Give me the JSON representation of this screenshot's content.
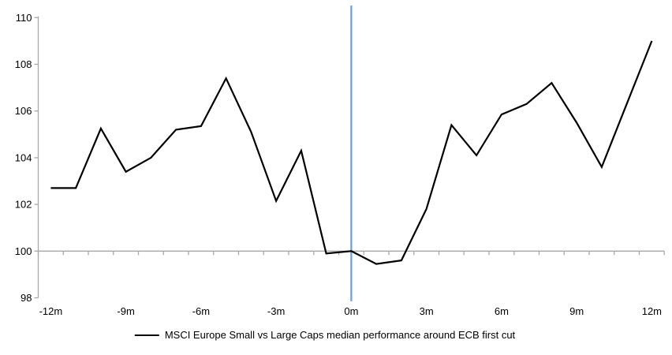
{
  "chart_data": {
    "type": "line",
    "x": [
      -12,
      -11,
      -10,
      -9,
      -8,
      -7,
      -6,
      -5,
      -4,
      -3,
      -2,
      -1,
      0,
      1,
      2,
      3,
      4,
      5,
      6,
      7,
      8,
      9,
      10,
      11,
      12
    ],
    "series": [
      {
        "name": "MSCI Europe Small vs Large Caps median performance around ECB first cut",
        "color": "#000000",
        "values": [
          102.7,
          102.7,
          105.25,
          103.4,
          104.0,
          105.2,
          105.35,
          107.4,
          105.1,
          102.15,
          104.3,
          99.9,
          100.0,
          99.45,
          99.6,
          101.8,
          105.4,
          104.1,
          105.85,
          106.3,
          107.2,
          105.5,
          103.6,
          106.3,
          109.0
        ]
      }
    ],
    "title": "",
    "xlabel": "",
    "ylabel": "",
    "ylim": [
      98,
      110
    ],
    "yticks": [
      98,
      100,
      102,
      104,
      106,
      108,
      110
    ],
    "ytick_labels": [
      "98",
      "100",
      "102",
      "104",
      "106",
      "108",
      "110"
    ],
    "xtick_positions": [
      -12,
      -9,
      -6,
      -3,
      0,
      3,
      6,
      9,
      12
    ],
    "xtick_labels": [
      "-12m",
      "-9m",
      "-6m",
      "-3m",
      "0m",
      "3m",
      "6m",
      "9m",
      "12m"
    ],
    "x_axis_cross_value": 100,
    "minor_x_ticks_every_month": true,
    "grid": false,
    "legend_position": "bottom",
    "event_line": {
      "at_x": 0,
      "color": "#6FA0CB"
    },
    "axis_color": "#A8A8A8",
    "text_color": "#000000"
  },
  "legend": {
    "label": "MSCI Europe Small vs Large Caps median performance around ECB first cut"
  }
}
